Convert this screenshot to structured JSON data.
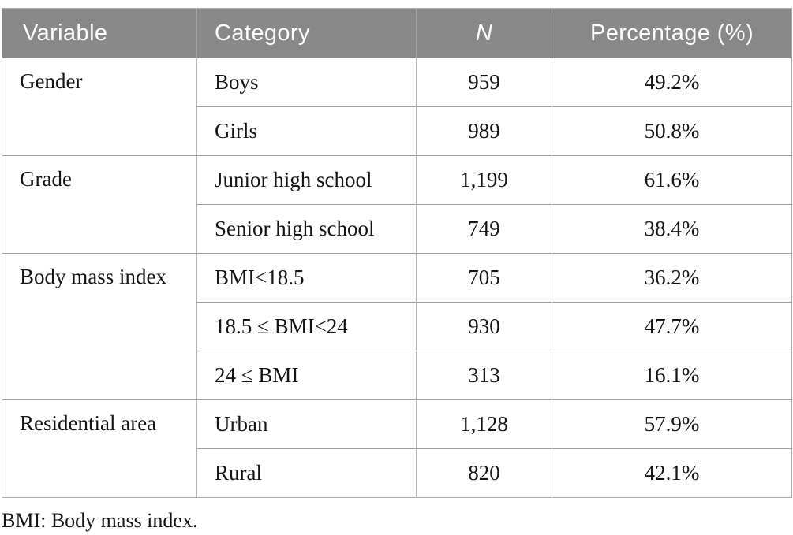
{
  "table": {
    "columns": [
      "Variable",
      "Category",
      "N",
      "Percentage (%)"
    ],
    "groups": [
      {
        "variable": "Gender",
        "rows": [
          [
            "Boys",
            "959",
            "49.2%"
          ],
          [
            "Girls",
            "989",
            "50.8%"
          ]
        ]
      },
      {
        "variable": "Grade",
        "rows": [
          [
            "Junior high school",
            "1,199",
            "61.6%"
          ],
          [
            "Senior high school",
            "749",
            "38.4%"
          ]
        ]
      },
      {
        "variable": "Body mass index",
        "rows": [
          [
            "BMI<18.5",
            "705",
            "36.2%"
          ],
          [
            "18.5 ≤ BMI<24",
            "930",
            "47.7%"
          ],
          [
            "24 ≤ BMI",
            "313",
            "16.1%"
          ]
        ]
      },
      {
        "variable": "Residential area",
        "rows": [
          [
            "Urban",
            "1,128",
            "57.9%"
          ],
          [
            "Rural",
            "820",
            "42.1%"
          ]
        ]
      }
    ],
    "footnote": "BMI: Body mass index."
  },
  "colors": {
    "header_bg": "#888889",
    "header_text": "#fdfdfd",
    "header_divider": "#a5a5a5",
    "row_divider": "#9c9c9c",
    "column_divider": "#b5b5b5",
    "body_text": "#141414"
  }
}
